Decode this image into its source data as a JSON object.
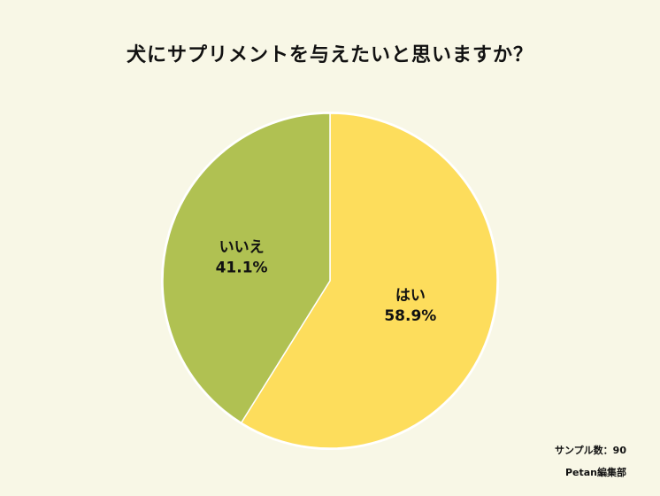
{
  "chart_data": {
    "type": "pie",
    "title": "犬にサプリメントを与えたいと思いますか？",
    "categories": [
      "はい",
      "いいえ"
    ],
    "values": [
      58.9,
      41.1
    ],
    "value_labels": [
      "58.9%",
      "41.1%"
    ],
    "colors": [
      "#fddd5c",
      "#b0c152"
    ]
  },
  "footer": {
    "sample": "サンプル数：90",
    "credit": "Petan編集部"
  },
  "colors": {
    "background": "#f8f7e6",
    "stroke": "#ffffff"
  }
}
